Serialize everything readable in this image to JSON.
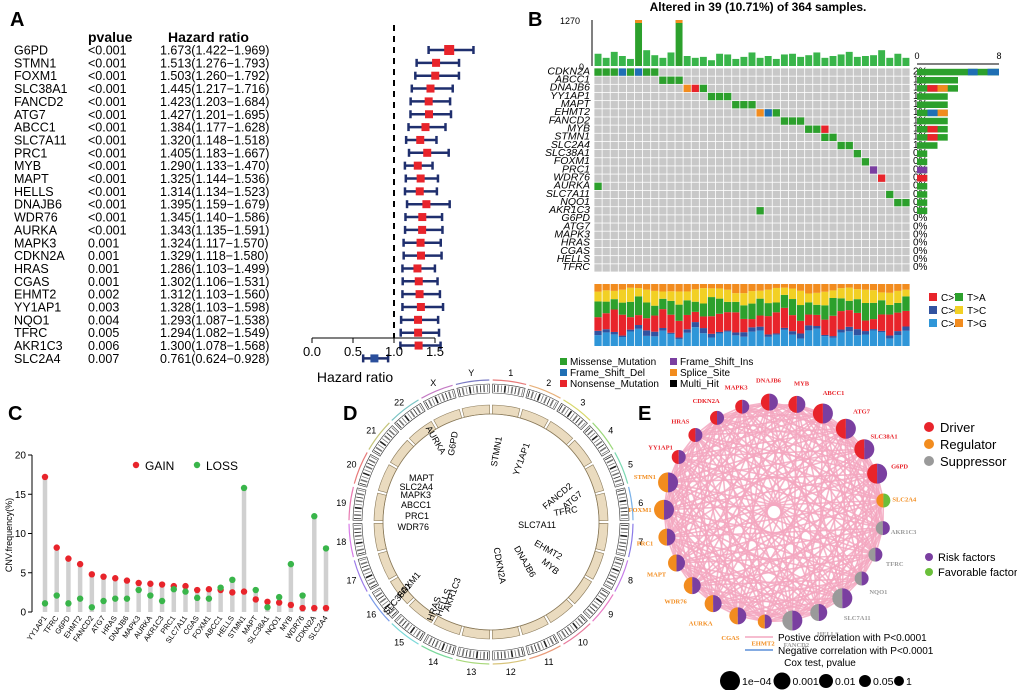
{
  "panels": {
    "A": "A",
    "B": "B",
    "C": "C",
    "D": "D",
    "E": "E"
  },
  "chart_data": [
    {
      "type": "forest",
      "panel": "A",
      "columns": {
        "gene": "",
        "pvalue": "pvalue",
        "hr": "Hazard ratio"
      },
      "xlabel": "Hazard ratio",
      "xticks": [
        "0.0",
        "0.5",
        "1.0",
        "1.5"
      ],
      "xlim": [
        0,
        1.8
      ],
      "reference_line": 1.0,
      "rows": [
        {
          "gene": "G6PD",
          "p": "<0.001",
          "text": "1.673(1.422−1.969)",
          "hr": 1.673,
          "lo": 1.422,
          "hi": 1.969
        },
        {
          "gene": "STMN1",
          "p": "<0.001",
          "text": "1.513(1.276−1.793)",
          "hr": 1.513,
          "lo": 1.276,
          "hi": 1.793
        },
        {
          "gene": "FOXM1",
          "p": "<0.001",
          "text": "1.503(1.260−1.792)",
          "hr": 1.503,
          "lo": 1.26,
          "hi": 1.792
        },
        {
          "gene": "SLC38A1",
          "p": "<0.001",
          "text": "1.445(1.217−1.716)",
          "hr": 1.445,
          "lo": 1.217,
          "hi": 1.716
        },
        {
          "gene": "FANCD2",
          "p": "<0.001",
          "text": "1.423(1.203−1.684)",
          "hr": 1.423,
          "lo": 1.203,
          "hi": 1.684
        },
        {
          "gene": "ATG7",
          "p": "<0.001",
          "text": "1.427(1.201−1.695)",
          "hr": 1.427,
          "lo": 1.201,
          "hi": 1.695
        },
        {
          "gene": "ABCC1",
          "p": "<0.001",
          "text": "1.384(1.177−1.628)",
          "hr": 1.384,
          "lo": 1.177,
          "hi": 1.628
        },
        {
          "gene": "SLC7A11",
          "p": "<0.001",
          "text": "1.320(1.148−1.518)",
          "hr": 1.32,
          "lo": 1.148,
          "hi": 1.518
        },
        {
          "gene": "PRC1",
          "p": "<0.001",
          "text": "1.405(1.183−1.667)",
          "hr": 1.405,
          "lo": 1.183,
          "hi": 1.667
        },
        {
          "gene": "MYB",
          "p": "<0.001",
          "text": "1.290(1.133−1.470)",
          "hr": 1.29,
          "lo": 1.133,
          "hi": 1.47
        },
        {
          "gene": "MAPT",
          "p": "<0.001",
          "text": "1.325(1.144−1.536)",
          "hr": 1.325,
          "lo": 1.144,
          "hi": 1.536
        },
        {
          "gene": "HELLS",
          "p": "<0.001",
          "text": "1.314(1.134−1.523)",
          "hr": 1.314,
          "lo": 1.134,
          "hi": 1.523
        },
        {
          "gene": "DNAJB6",
          "p": "<0.001",
          "text": "1.395(1.159−1.679)",
          "hr": 1.395,
          "lo": 1.159,
          "hi": 1.679
        },
        {
          "gene": "WDR76",
          "p": "<0.001",
          "text": "1.345(1.140−1.586)",
          "hr": 1.345,
          "lo": 1.14,
          "hi": 1.586
        },
        {
          "gene": "AURKA",
          "p": "<0.001",
          "text": "1.343(1.135−1.591)",
          "hr": 1.343,
          "lo": 1.135,
          "hi": 1.591
        },
        {
          "gene": "MAPK3",
          "p": "0.001",
          "text": "1.324(1.117−1.570)",
          "hr": 1.324,
          "lo": 1.117,
          "hi": 1.57
        },
        {
          "gene": "CDKN2A",
          "p": "0.001",
          "text": "1.329(1.118−1.580)",
          "hr": 1.329,
          "lo": 1.118,
          "hi": 1.58
        },
        {
          "gene": "HRAS",
          "p": "0.001",
          "text": "1.286(1.103−1.499)",
          "hr": 1.286,
          "lo": 1.103,
          "hi": 1.499
        },
        {
          "gene": "CGAS",
          "p": "0.001",
          "text": "1.302(1.106−1.531)",
          "hr": 1.302,
          "lo": 1.106,
          "hi": 1.531
        },
        {
          "gene": "EHMT2",
          "p": "0.002",
          "text": "1.312(1.103−1.560)",
          "hr": 1.312,
          "lo": 1.103,
          "hi": 1.56
        },
        {
          "gene": "YY1AP1",
          "p": "0.003",
          "text": "1.328(1.103−1.598)",
          "hr": 1.328,
          "lo": 1.103,
          "hi": 1.598
        },
        {
          "gene": "NQO1",
          "p": "0.004",
          "text": "1.293(1.087−1.538)",
          "hr": 1.293,
          "lo": 1.087,
          "hi": 1.538
        },
        {
          "gene": "TFRC",
          "p": "0.005",
          "text": "1.294(1.082−1.549)",
          "hr": 1.294,
          "lo": 1.082,
          "hi": 1.549
        },
        {
          "gene": "AKR1C3",
          "p": "0.006",
          "text": "1.300(1.078−1.568)",
          "hr": 1.3,
          "lo": 1.078,
          "hi": 1.568
        },
        {
          "gene": "SLC2A4",
          "p": "0.007",
          "text": "0.761(0.624−0.928)",
          "hr": 0.761,
          "lo": 0.624,
          "hi": 0.928
        }
      ]
    },
    {
      "type": "oncoplot",
      "panel": "B",
      "title": "Altered in 39 (10.71%) of 364 samples.",
      "top_axis": {
        "max": "1270",
        "min": "0"
      },
      "right_axis": {
        "min": "0",
        "max": "8"
      },
      "genes": [
        "CDKN2A",
        "ABCC1",
        "DNAJB6",
        "YY1AP1",
        "MAPT",
        "EHMT2",
        "FANCD2",
        "MYB",
        "STMN1",
        "SLC2A4",
        "SLC38A1",
        "FOXM1",
        "PRC1",
        "WDR76",
        "AURKA",
        "SLC7A11",
        "NQO1",
        "AKR1C3",
        "G6PD",
        "ATG7",
        "MAPK3",
        "HRAS",
        "CGAS",
        "HELLS",
        "TFRC"
      ],
      "percents": [
        "2%",
        "1%",
        "1%",
        "1%",
        "1%",
        "1%",
        "1%",
        "1%",
        "1%",
        "1%",
        "0%",
        "0%",
        "0%",
        "0%",
        "0%",
        "0%",
        "0%",
        "0%",
        "0%",
        "0%",
        "0%",
        "0%",
        "0%",
        "0%",
        "0%"
      ],
      "gene_counts": [
        8,
        4,
        4,
        3,
        3,
        3,
        3,
        3,
        3,
        2,
        1,
        1,
        1,
        1,
        1,
        1,
        1,
        1,
        0,
        0,
        0,
        0,
        0,
        0,
        0
      ],
      "top_bar_values": [
        90,
        40,
        120,
        60,
        30,
        1270,
        150,
        70,
        40,
        110,
        1270,
        60,
        40,
        50,
        20,
        90,
        80,
        30,
        50,
        110,
        40,
        60,
        30,
        80,
        90,
        50,
        70,
        110,
        40,
        60,
        80,
        120,
        50,
        60,
        70,
        150,
        40,
        90,
        40
      ],
      "titv_legend": [
        {
          "label": "C>T",
          "color": "#e8242b"
        },
        {
          "label": "T>A",
          "color": "#2ca02c"
        },
        {
          "label": "C>G",
          "color": "#3153a0"
        },
        {
          "label": "T>C",
          "color": "#f2d024"
        },
        {
          "label": "C>A",
          "color": "#2f96d8"
        },
        {
          "label": "T>G",
          "color": "#f28c1e"
        }
      ],
      "variant_legend": [
        {
          "label": "Missense_Mutation",
          "color": "#2ca02c"
        },
        {
          "label": "Frame_Shift_Ins",
          "color": "#7a3fa0"
        },
        {
          "label": "Frame_Shift_Del",
          "color": "#1f6fb4"
        },
        {
          "label": "Splice_Site",
          "color": "#f28c1e"
        },
        {
          "label": "Nonsense_Mutation",
          "color": "#e8242b"
        },
        {
          "label": "Multi_Hit",
          "color": "#000000"
        }
      ]
    },
    {
      "type": "lollipop",
      "panel": "C",
      "ylabel": "CNV.frequency(%)",
      "yticks": [
        "0",
        "5",
        "10",
        "15",
        "20"
      ],
      "ylim": [
        0,
        20
      ],
      "legend": [
        {
          "label": "GAIN",
          "color": "#e8242b"
        },
        {
          "label": "LOSS",
          "color": "#39b54a"
        }
      ],
      "categories": [
        "YY1AP1",
        "TFRC",
        "G6PD",
        "EHMT2",
        "FANCD2",
        "ATG7",
        "HRAS",
        "DNAJB6",
        "MAPK3",
        "AURKA",
        "AKR1C3",
        "PRC1",
        "SLC7A11",
        "CGAS",
        "FOXM1",
        "ABCC1",
        "HELLS",
        "STMN1",
        "MAPT",
        "SLC38A1",
        "NQO1",
        "MYB",
        "WDR76",
        "CDKN2A",
        "SLC2A4"
      ],
      "gain": [
        17.2,
        8.2,
        6.8,
        6.1,
        4.8,
        4.5,
        4.3,
        4.0,
        3.7,
        3.6,
        3.5,
        3.3,
        3.3,
        2.8,
        2.9,
        2.8,
        2.5,
        2.6,
        1.6,
        1.3,
        1.2,
        0.9,
        0.5,
        0.5,
        0.5
      ],
      "loss": [
        1.1,
        2.1,
        1.1,
        1.7,
        0.6,
        1.4,
        1.7,
        1.7,
        2.8,
        2.1,
        1.4,
        2.9,
        2.6,
        1.8,
        1.7,
        3.1,
        4.1,
        15.8,
        2.8,
        0.6,
        1.9,
        6.1,
        2.1,
        12.2,
        8.1
      ]
    },
    {
      "type": "circos",
      "panel": "D",
      "chromosomes": [
        "1",
        "2",
        "3",
        "4",
        "5",
        "6",
        "7",
        "8",
        "9",
        "10",
        "11",
        "12",
        "13",
        "14",
        "15",
        "16",
        "17",
        "18",
        "19",
        "20",
        "21",
        "22",
        "X",
        "Y"
      ],
      "gene_labels": [
        "G6PD",
        "STMN1",
        "YY1AP1",
        "FANCD2",
        "ATG7",
        "TFRC",
        "SLC7A11",
        "EHMT2",
        "MYB",
        "DNAJB6",
        "CDKN2A",
        "AKR1C3",
        "HELLS",
        "HRAS",
        "FOXM1",
        "SLC38A1",
        "WDR76",
        "PRC1",
        "ABCC1",
        "MAPK3",
        "SLC2A4",
        "MAPT",
        "AURKA"
      ]
    },
    {
      "type": "network",
      "panel": "E",
      "nodes": [
        {
          "name": "MYB",
          "role": "Driver",
          "effect": "risk",
          "p": 0.001
        },
        {
          "name": "ABCC1",
          "role": "Driver",
          "effect": "risk",
          "p": 0.0001
        },
        {
          "name": "ATG7",
          "role": "Driver",
          "effect": "risk",
          "p": 0.0001
        },
        {
          "name": "SLC38A1",
          "role": "Driver",
          "effect": "risk",
          "p": 0.0001
        },
        {
          "name": "G6PD",
          "role": "Driver",
          "effect": "risk",
          "p": 0.0001
        },
        {
          "name": "SLC2A4",
          "role": "Regulator",
          "effect": "favorable",
          "p": 0.01
        },
        {
          "name": "AKR1C3",
          "role": "Suppressor",
          "effect": "risk",
          "p": 0.01
        },
        {
          "name": "TFRC",
          "role": "Suppressor",
          "effect": "risk",
          "p": 0.01
        },
        {
          "name": "NQO1",
          "role": "Suppressor",
          "effect": "risk",
          "p": 0.01
        },
        {
          "name": "SLC7A11",
          "role": "Suppressor",
          "effect": "risk",
          "p": 0.0001
        },
        {
          "name": "HELLS",
          "role": "Suppressor",
          "effect": "risk",
          "p": 0.001
        },
        {
          "name": "FANCD2",
          "role": "Suppressor",
          "effect": "risk",
          "p": 0.0001
        },
        {
          "name": "EHMT2",
          "role": "Regulator",
          "effect": "risk",
          "p": 0.01
        },
        {
          "name": "CGAS",
          "role": "Regulator",
          "effect": "risk",
          "p": 0.001
        },
        {
          "name": "AURKA",
          "role": "Regulator",
          "effect": "risk",
          "p": 0.001
        },
        {
          "name": "WDR76",
          "role": "Regulator",
          "effect": "risk",
          "p": 0.001
        },
        {
          "name": "MAPT",
          "role": "Regulator",
          "effect": "risk",
          "p": 0.001
        },
        {
          "name": "PRC1",
          "role": "Regulator",
          "effect": "risk",
          "p": 0.001
        },
        {
          "name": "FOXM1",
          "role": "Regulator",
          "effect": "risk",
          "p": 0.0001
        },
        {
          "name": "STMN1",
          "role": "Regulator",
          "effect": "risk",
          "p": 0.0001
        },
        {
          "name": "YY1AP1",
          "role": "Driver",
          "effect": "risk",
          "p": 0.01
        },
        {
          "name": "HRAS",
          "role": "Driver",
          "effect": "risk",
          "p": 0.01
        },
        {
          "name": "CDKN2A",
          "role": "Driver",
          "effect": "risk",
          "p": 0.01
        },
        {
          "name": "MAPK3",
          "role": "Driver",
          "effect": "risk",
          "p": 0.01
        },
        {
          "name": "DNAJB6",
          "role": "Driver",
          "effect": "risk",
          "p": 0.001
        }
      ],
      "role_legend": [
        {
          "label": "Driver",
          "color": "#e8242b"
        },
        {
          "label": "Regulator",
          "color": "#f28c1e"
        },
        {
          "label": "Suppressor",
          "color": "#9a9a9a"
        }
      ],
      "effect_legend": [
        {
          "label": "Risk factors",
          "color": "#7a3fa0"
        },
        {
          "label": "Favorable factors",
          "color": "#6abf3a"
        }
      ],
      "line_legend": [
        {
          "label": "Postive correlation with P<0.0001",
          "color": "#f4a7c0"
        },
        {
          "label": "Negative correlation with P<0.0001",
          "color": "#5b8fd8"
        }
      ],
      "size_legend_title": "Cox test, pvalue",
      "size_legend": [
        "1e−04",
        "0.001",
        "0.01",
        "0.05",
        "1"
      ]
    }
  ]
}
